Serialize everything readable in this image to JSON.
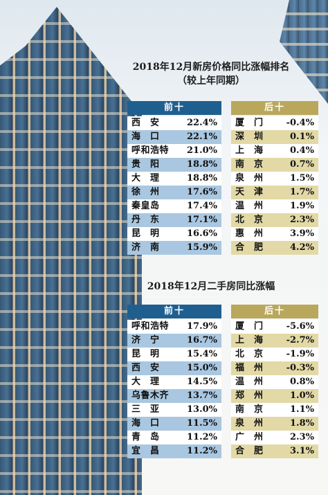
{
  "section1": {
    "title": "2018年12月新房价格同比涨幅排名",
    "subtitle": "（较上年同期）",
    "top_header": "前十",
    "bottom_header": "后十",
    "top": [
      {
        "city": "西　安",
        "value": "22.4%"
      },
      {
        "city": "海　口",
        "value": "22.1%"
      },
      {
        "city": "呼和浩特",
        "value": "21.0%"
      },
      {
        "city": "贵　阳",
        "value": "18.8%"
      },
      {
        "city": "大　理",
        "value": "18.8%"
      },
      {
        "city": "徐　州",
        "value": "17.6%"
      },
      {
        "city": "秦皇岛",
        "value": "17.4%"
      },
      {
        "city": "丹　东",
        "value": "17.1%"
      },
      {
        "city": "昆　明",
        "value": "16.6%"
      },
      {
        "city": "济　南",
        "value": "15.9%"
      }
    ],
    "bottom": [
      {
        "city": "厦　门",
        "value": "-0.4%"
      },
      {
        "city": "深　圳",
        "value": "0.1%"
      },
      {
        "city": "上　海",
        "value": "0.4%"
      },
      {
        "city": "南　京",
        "value": "0.7%"
      },
      {
        "city": "泉　州",
        "value": "1.5%"
      },
      {
        "city": "天　津",
        "value": "1.7%"
      },
      {
        "city": "温　州",
        "value": "1.9%"
      },
      {
        "city": "北　京",
        "value": "2.3%"
      },
      {
        "city": "惠　州",
        "value": "3.9%"
      },
      {
        "city": "合　肥",
        "value": "4.2%"
      }
    ]
  },
  "section2": {
    "title": "2018年12月二手房同比涨幅",
    "top_header": "前十",
    "bottom_header": "后十",
    "top": [
      {
        "city": "呼和浩特",
        "value": "17.9%"
      },
      {
        "city": "济　宁",
        "value": "16.7%"
      },
      {
        "city": "昆　明",
        "value": "15.4%"
      },
      {
        "city": "西　安",
        "value": "15.0%"
      },
      {
        "city": "大　理",
        "value": "14.5%"
      },
      {
        "city": "乌鲁木齐",
        "value": "13.7%"
      },
      {
        "city": "三　亚",
        "value": "13.0%"
      },
      {
        "city": "海　口",
        "value": "11.5%"
      },
      {
        "city": "青　岛",
        "value": "11.2%"
      },
      {
        "city": "宜　昌",
        "value": "11.2%"
      }
    ],
    "bottom": [
      {
        "city": "厦　门",
        "value": "-5.6%"
      },
      {
        "city": "上　海",
        "value": "-2.7%"
      },
      {
        "city": "北　京",
        "value": "-1.9%"
      },
      {
        "city": "福　州",
        "value": "-0.3%"
      },
      {
        "city": "温　州",
        "value": "0.8%"
      },
      {
        "city": "郑　州",
        "value": "1.0%"
      },
      {
        "city": "南　京",
        "value": "1.1%"
      },
      {
        "city": "泉　州",
        "value": "1.8%"
      },
      {
        "city": "广　州",
        "value": "2.3%"
      },
      {
        "city": "合　肥",
        "value": "3.1%"
      }
    ]
  },
  "colors": {
    "top_header": "#1f5f8f",
    "top_stripe": "#a9c7e0",
    "bottom_header": "#b9a75c",
    "bottom_stripe": "#e2d9a6"
  }
}
